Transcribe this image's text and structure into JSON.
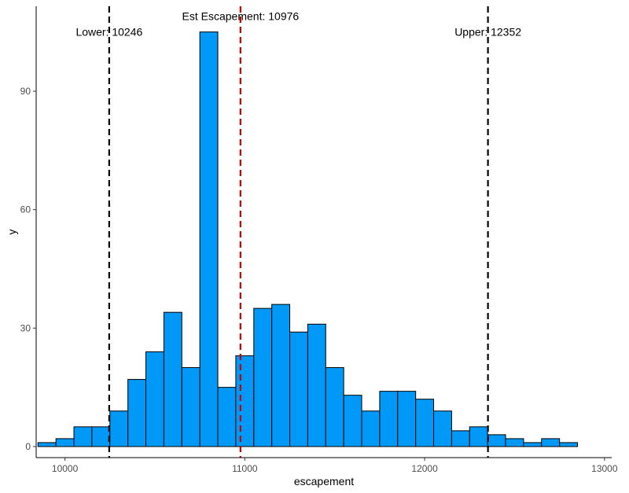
{
  "chart_data": {
    "type": "bar",
    "subtype": "histogram",
    "title": "",
    "xlabel": "escapement",
    "ylabel": "y",
    "xlim": [
      9840,
      13040
    ],
    "ylim": [
      -2.8,
      111.5
    ],
    "x_ticks": [
      10000,
      11000,
      12000,
      13000
    ],
    "x_tick_labels": [
      "10000",
      "11000",
      "12000",
      "13000"
    ],
    "y_ticks": [
      0,
      30,
      60,
      90
    ],
    "y_tick_labels": [
      "0",
      "30",
      "60",
      "90"
    ],
    "bin_width": 100,
    "bins": [
      {
        "x0": 9850,
        "x1": 9950,
        "count": 1
      },
      {
        "x0": 9950,
        "x1": 10050,
        "count": 2
      },
      {
        "x0": 10050,
        "x1": 10150,
        "count": 5
      },
      {
        "x0": 10150,
        "x1": 10250,
        "count": 5
      },
      {
        "x0": 10250,
        "x1": 10350,
        "count": 9
      },
      {
        "x0": 10350,
        "x1": 10450,
        "count": 17
      },
      {
        "x0": 10450,
        "x1": 10550,
        "count": 24
      },
      {
        "x0": 10550,
        "x1": 10650,
        "count": 34
      },
      {
        "x0": 10650,
        "x1": 10750,
        "count": 20
      },
      {
        "x0": 10750,
        "x1": 10850,
        "count": 105
      },
      {
        "x0": 10850,
        "x1": 10950,
        "count": 15
      },
      {
        "x0": 10950,
        "x1": 11050,
        "count": 23
      },
      {
        "x0": 11050,
        "x1": 11150,
        "count": 35
      },
      {
        "x0": 11150,
        "x1": 11250,
        "count": 36
      },
      {
        "x0": 11250,
        "x1": 11350,
        "count": 29
      },
      {
        "x0": 11350,
        "x1": 11450,
        "count": 31
      },
      {
        "x0": 11450,
        "x1": 11550,
        "count": 20
      },
      {
        "x0": 11550,
        "x1": 11650,
        "count": 13
      },
      {
        "x0": 11650,
        "x1": 11750,
        "count": 9
      },
      {
        "x0": 11750,
        "x1": 11850,
        "count": 14
      },
      {
        "x0": 11850,
        "x1": 11950,
        "count": 14
      },
      {
        "x0": 11950,
        "x1": 12050,
        "count": 12
      },
      {
        "x0": 12050,
        "x1": 12150,
        "count": 9
      },
      {
        "x0": 12150,
        "x1": 12250,
        "count": 4
      },
      {
        "x0": 12250,
        "x1": 12350,
        "count": 5
      },
      {
        "x0": 12350,
        "x1": 12450,
        "count": 3
      },
      {
        "x0": 12450,
        "x1": 12550,
        "count": 2
      },
      {
        "x0": 12550,
        "x1": 12650,
        "count": 1
      },
      {
        "x0": 12650,
        "x1": 12750,
        "count": 2
      },
      {
        "x0": 12750,
        "x1": 12850,
        "count": 1
      }
    ],
    "vlines": [
      {
        "name": "lower",
        "x": 10246,
        "color": "#000000",
        "style": "dashed",
        "label": "Lower: 10246",
        "label_y": 105
      },
      {
        "name": "estimate",
        "x": 10976,
        "color": "#cc0000",
        "style": "dashed",
        "label": "Est Escapement: 10976",
        "label_y": 109
      },
      {
        "name": "upper",
        "x": 12352,
        "color": "#000000",
        "style": "dashed",
        "label": "Upper: 12352",
        "label_y": 105
      }
    ],
    "colors": {
      "bar_fill": "#0099f8",
      "bar_outline": "#000000"
    },
    "grid": false,
    "legend": "none"
  }
}
